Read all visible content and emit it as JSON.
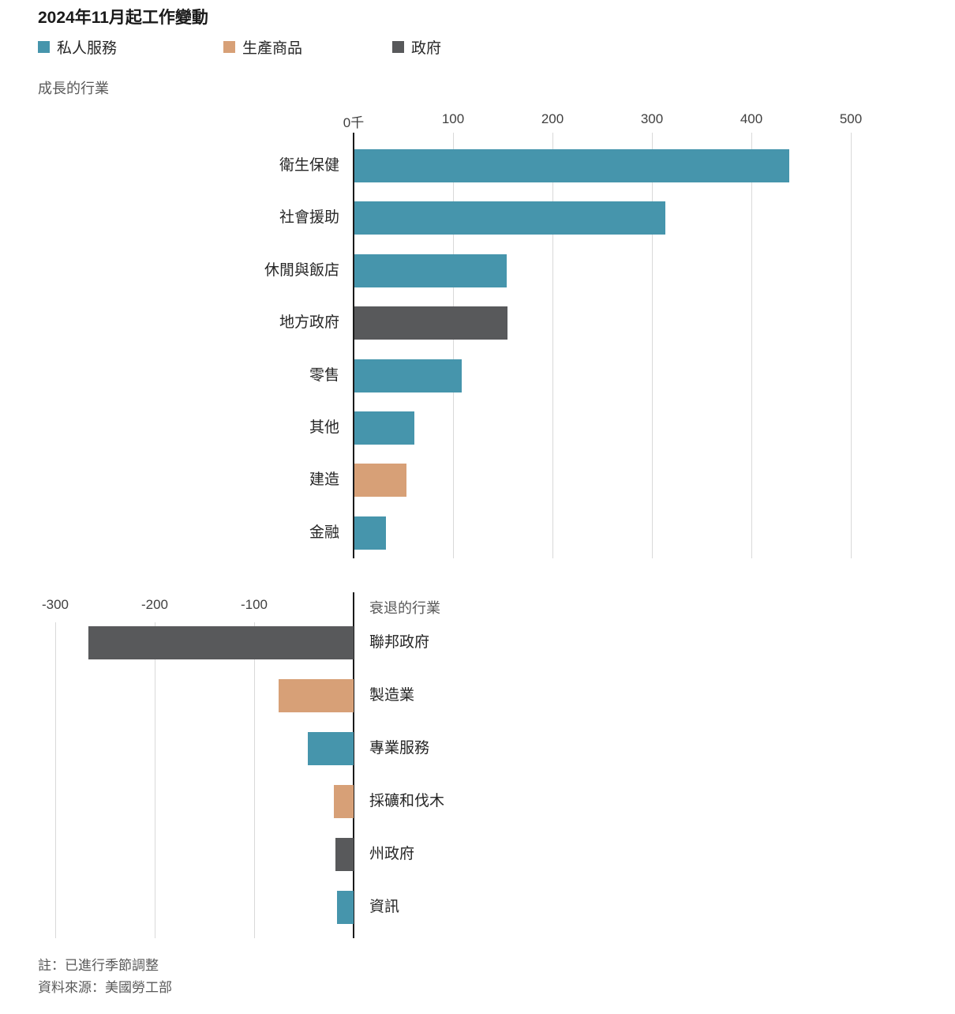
{
  "title": "2024年11月起工作變動",
  "legend": [
    {
      "label": "私人服務",
      "color": "#4695ac"
    },
    {
      "label": "生產商品",
      "color": "#d7a077"
    },
    {
      "label": "政府",
      "color": "#58595b"
    }
  ],
  "notes": {
    "note": "註：已進行季節調整",
    "source": "資料來源：美國勞工部"
  },
  "chart_data": {
    "type": "bar",
    "orientation": "horizontal",
    "unit": "千",
    "grid": true,
    "sections": [
      {
        "label": "成長的行業",
        "axis_range": [
          0,
          500
        ],
        "ticks": [
          {
            "label": "0千",
            "value": 0
          },
          {
            "label": "100",
            "value": 100
          },
          {
            "label": "200",
            "value": 200
          },
          {
            "label": "300",
            "value": 300
          },
          {
            "label": "400",
            "value": 400
          },
          {
            "label": "500",
            "value": 500
          }
        ],
        "rows": [
          {
            "category": "衛生保健",
            "value": 437,
            "series": "私人服務"
          },
          {
            "category": "社會援助",
            "value": 313,
            "series": "私人服務"
          },
          {
            "category": "休閒與飯店",
            "value": 153,
            "series": "私人服務"
          },
          {
            "category": "地方政府",
            "value": 154,
            "series": "政府"
          },
          {
            "category": "零售",
            "value": 108,
            "series": "私人服務"
          },
          {
            "category": "其他",
            "value": 60,
            "series": "私人服務"
          },
          {
            "category": "建造",
            "value": 52,
            "series": "生產商品"
          },
          {
            "category": "金融",
            "value": 32,
            "series": "私人服務"
          }
        ]
      },
      {
        "label": "衰退的行業",
        "axis_range": [
          -300,
          0
        ],
        "ticks": [
          {
            "label": "-300",
            "value": -300
          },
          {
            "label": "-200",
            "value": -200
          },
          {
            "label": "-100",
            "value": -100
          }
        ],
        "rows": [
          {
            "category": "聯邦政府",
            "value": -267,
            "series": "政府"
          },
          {
            "category": "製造業",
            "value": -75,
            "series": "生產商品"
          },
          {
            "category": "專業服務",
            "value": -46,
            "series": "私人服務"
          },
          {
            "category": "採礦和伐木",
            "value": -20,
            "series": "生產商品"
          },
          {
            "category": "州政府",
            "value": -18,
            "series": "政府"
          },
          {
            "category": "資訊",
            "value": -17,
            "series": "私人服務"
          }
        ]
      }
    ]
  }
}
